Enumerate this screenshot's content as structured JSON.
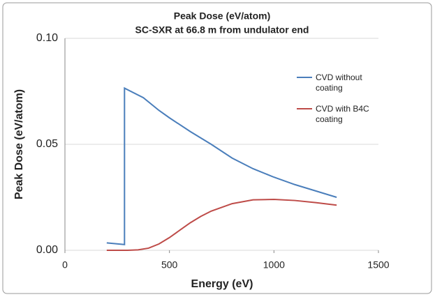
{
  "chart_data": {
    "type": "line",
    "title": "Peak Dose (eV/atom)",
    "subtitle": "SC-SXR at 66.8 m from undulator end",
    "x_label": "Energy (eV)",
    "y_label": "Peak Dose (eV/atom)",
    "xlim": [
      0,
      1500
    ],
    "xticks": [
      0,
      500,
      1000,
      1500
    ],
    "ylim": [
      0,
      0.1
    ],
    "yticks": [
      {
        "value": 0,
        "label": "0.00"
      },
      {
        "value": 0.05,
        "label": "0.05"
      },
      {
        "value": 0.1,
        "label": "0.10"
      }
    ],
    "grid": true,
    "legend": "right",
    "series": [
      {
        "name": "CVD without coating",
        "color": "#4a7ebb",
        "x": [
          200,
          285,
          285,
          375,
          450,
          500,
          600,
          700,
          800,
          900,
          1000,
          1100,
          1200,
          1300
        ],
        "values": [
          0.0035,
          0.0027,
          0.0765,
          0.072,
          0.066,
          0.0625,
          0.056,
          0.05,
          0.0435,
          0.0385,
          0.0345,
          0.031,
          0.028,
          0.025
        ]
      },
      {
        "name": "CVD with B4C coating",
        "color": "#be4b48",
        "x": [
          200,
          300,
          350,
          400,
          450,
          500,
          550,
          600,
          650,
          700,
          800,
          900,
          1000,
          1100,
          1200,
          1300
        ],
        "values": [
          0,
          0,
          0.0002,
          0.001,
          0.003,
          0.006,
          0.0095,
          0.013,
          0.016,
          0.0185,
          0.022,
          0.0238,
          0.024,
          0.0235,
          0.0225,
          0.0213
        ]
      }
    ]
  }
}
